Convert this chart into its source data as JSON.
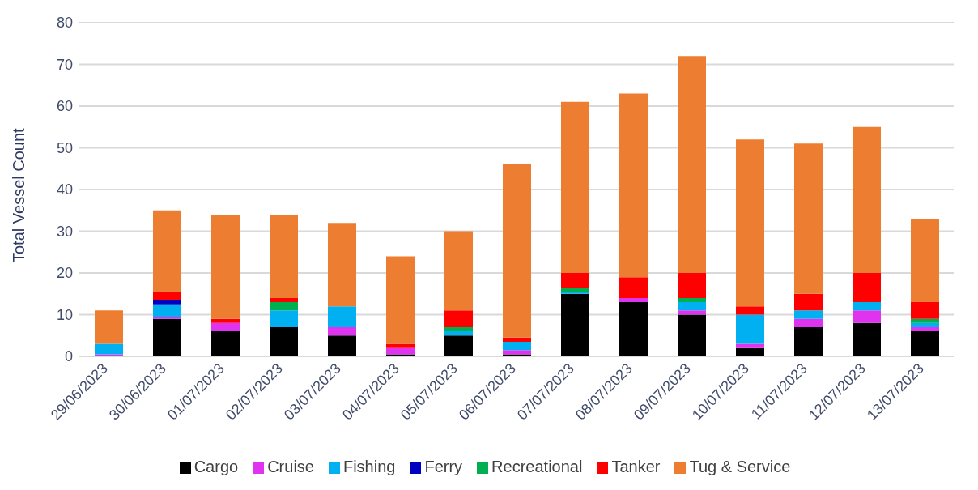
{
  "chart_data": {
    "type": "bar",
    "stacked": true,
    "ylabel": "Total Vessel Count",
    "categories": [
      "29/06/2023",
      "30/06/2023",
      "01/07/2023",
      "02/07/2023",
      "03/07/2023",
      "04/07/2023",
      "05/07/2023",
      "06/07/2023",
      "07/07/2023",
      "08/07/2023",
      "09/07/2023",
      "10/07/2023",
      "11/07/2023",
      "12/07/2023",
      "13/07/2023"
    ],
    "series": [
      {
        "name": "Cargo",
        "color": "#000000",
        "values": [
          0,
          9,
          6,
          7,
          5,
          0.5,
          5,
          0.5,
          15,
          13,
          10,
          2,
          7,
          8,
          6
        ]
      },
      {
        "name": "Cruise",
        "color": "#e033f0",
        "values": [
          0.5,
          0.5,
          2,
          0,
          2,
          1.5,
          0,
          1,
          0,
          1,
          1,
          1,
          2,
          3,
          1
        ]
      },
      {
        "name": "Fishing",
        "color": "#00b0f0",
        "values": [
          2.5,
          3,
          0,
          4,
          5,
          0,
          1,
          2,
          0.5,
          0,
          2,
          7,
          2,
          2,
          1
        ]
      },
      {
        "name": "Ferry",
        "color": "#0000c0",
        "values": [
          0,
          1,
          0,
          0,
          0,
          0,
          0,
          0,
          0,
          0,
          0,
          0,
          0,
          0,
          0
        ]
      },
      {
        "name": "Recreational",
        "color": "#00b050",
        "values": [
          0,
          0,
          0,
          2,
          0,
          0,
          1,
          0,
          1,
          0,
          1,
          0,
          0,
          0,
          1
        ]
      },
      {
        "name": "Tanker",
        "color": "#ff0000",
        "values": [
          0,
          2,
          1,
          1,
          0,
          1,
          4,
          1,
          3.5,
          5,
          6,
          2,
          4,
          7,
          4
        ]
      },
      {
        "name": "Tug & Service",
        "color": "#ed7d31",
        "values": [
          8,
          19.5,
          25,
          20,
          20,
          21,
          19,
          41.5,
          41,
          44,
          52,
          40,
          36,
          35,
          20
        ]
      }
    ],
    "ylim": [
      0,
      80
    ],
    "yticks": [
      0,
      10,
      20,
      30,
      40,
      50,
      60,
      70,
      80
    ],
    "grid": "y",
    "legend": "bottom"
  }
}
